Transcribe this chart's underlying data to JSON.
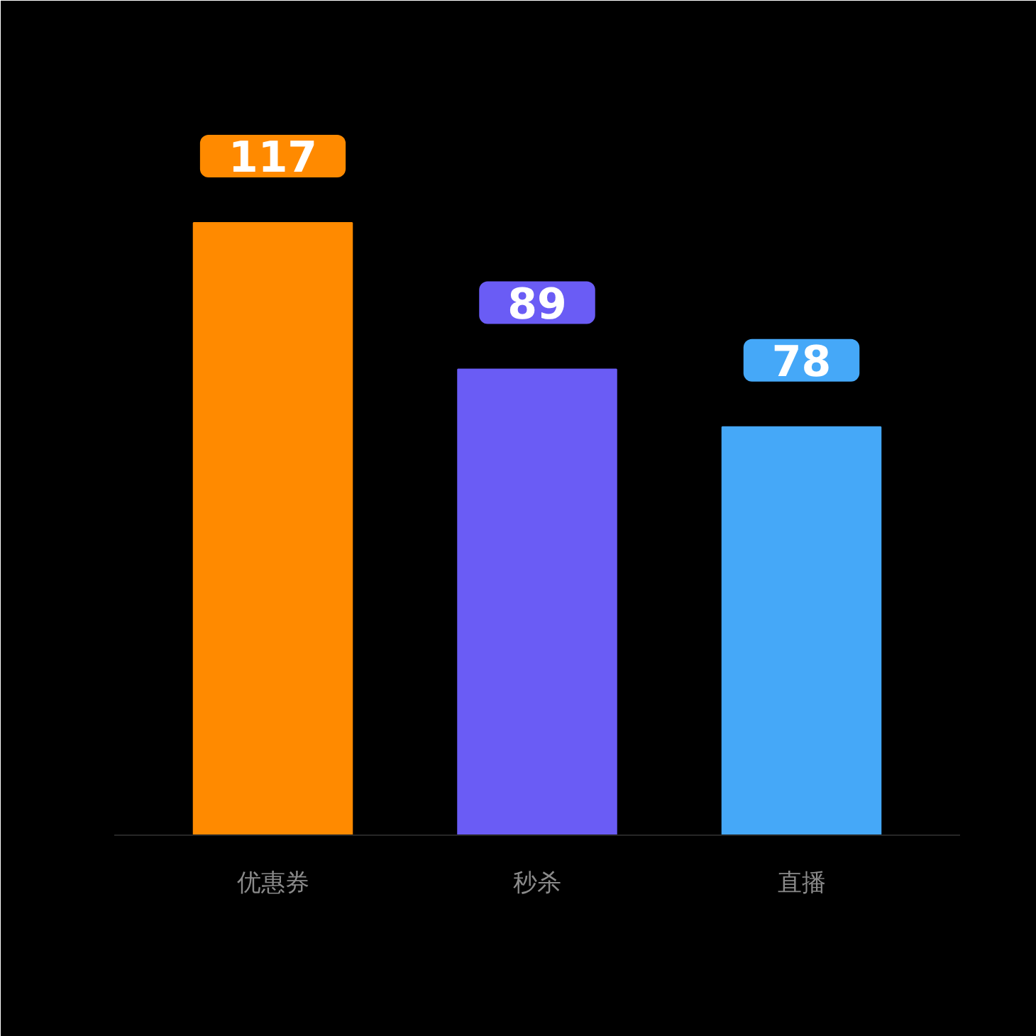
{
  "chart_data": {
    "type": "bar",
    "categories": [
      "优惠券",
      "秒杀",
      "直播"
    ],
    "values": [
      117,
      89,
      78
    ],
    "colors": [
      "#ff8a00",
      "#6a5cf5",
      "#45a8f8"
    ],
    "data_labels": true,
    "grid": false
  }
}
